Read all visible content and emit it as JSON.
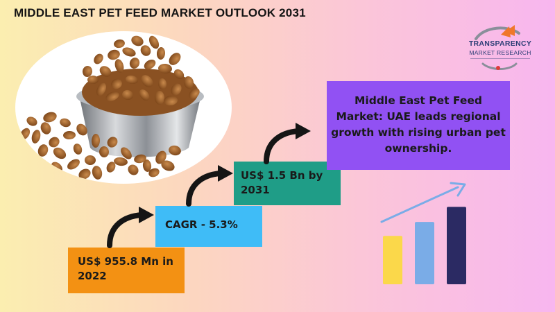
{
  "title": "MIDDLE EAST PET FEED MARKET OUTLOOK 2031",
  "logo": {
    "main": "TRANSPARENCY",
    "sub": "MARKET RESEARCH"
  },
  "steps": [
    {
      "label": "US$ 955.8 Mn in 2022",
      "color": "#f39113"
    },
    {
      "label": "CAGR - 5.3%",
      "color": "#3fbcf7"
    },
    {
      "label": "US$ 1.5 Bn by 2031",
      "color": "#1f9d87"
    }
  ],
  "highlight": {
    "text": "Middle East Pet Feed Market: UAE leads regional growth with rising urban pet ownership.",
    "color": "#9151f3"
  },
  "decor_bars": {
    "levels": [
      0.45,
      0.58,
      0.72
    ],
    "colors": [
      "#fbd84a",
      "#7aace7",
      "#2b2a63"
    ],
    "trend_color": "#7aace7"
  },
  "icons": {
    "arrows": "curved-arrow-icon",
    "logo": "transparency-logo-icon",
    "food": "pet-food-bowl-icon",
    "chart": "bar-growth-icon"
  }
}
